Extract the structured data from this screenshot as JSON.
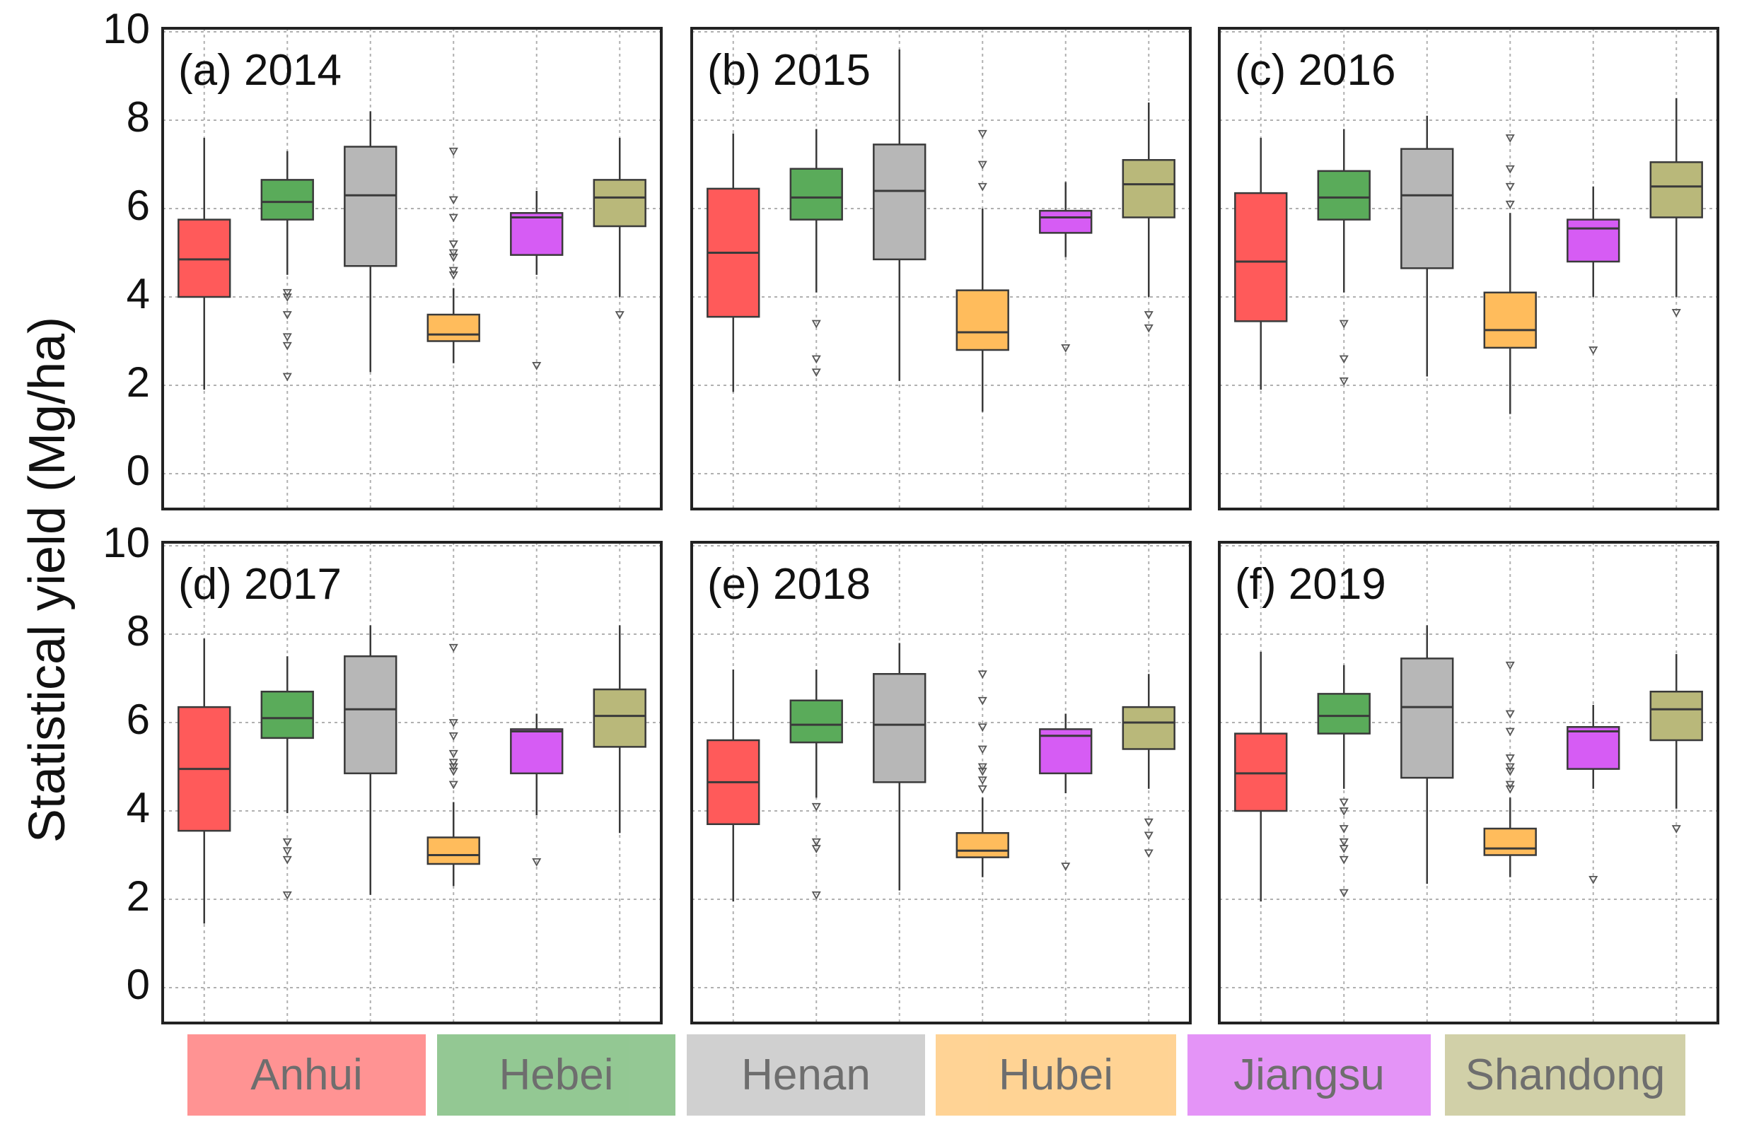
{
  "chart_data": {
    "type": "box",
    "ylabel": "Statistical yield (Mg/ha)",
    "ylim": [
      0,
      10
    ],
    "yticks": [
      0,
      2,
      4,
      6,
      8,
      10
    ],
    "grid": true,
    "layout": "2 rows x 3 columns",
    "categories": [
      "Anhui",
      "Hebei",
      "Henan",
      "Hubei",
      "Jiangsu",
      "Shandong"
    ],
    "colors": {
      "Anhui": "#ff5a5a",
      "Hebei": "#5aab5a",
      "Henan": "#b7b7b7",
      "Hubei": "#ffbc5c",
      "Jiangsu": "#d65cf4",
      "Shandong": "#b9b87a"
    },
    "panels": [
      {
        "title": "(a) 2014",
        "boxes": [
          {
            "name": "Anhui",
            "whislo": 1.9,
            "q1": 4.0,
            "med": 4.85,
            "q3": 5.75,
            "whishi": 7.6,
            "fliers": []
          },
          {
            "name": "Hebei",
            "whislo": 4.5,
            "q1": 5.75,
            "med": 6.15,
            "q3": 6.65,
            "whishi": 7.3,
            "fliers": [
              4.1,
              4.0,
              3.6,
              3.1,
              2.9,
              2.2
            ]
          },
          {
            "name": "Henan",
            "whislo": 2.3,
            "q1": 4.7,
            "med": 6.3,
            "q3": 7.4,
            "whishi": 8.2,
            "fliers": []
          },
          {
            "name": "Hubei",
            "whislo": 2.5,
            "q1": 3.0,
            "med": 3.15,
            "q3": 3.6,
            "whishi": 4.2,
            "fliers": [
              7.3,
              6.2,
              5.8,
              5.2,
              5.0,
              4.9,
              4.6,
              4.5
            ]
          },
          {
            "name": "Jiangsu",
            "whislo": 4.5,
            "q1": 4.95,
            "med": 5.8,
            "q3": 5.9,
            "whishi": 6.4,
            "fliers": [
              2.45
            ]
          },
          {
            "name": "Shandong",
            "whislo": 4.0,
            "q1": 5.6,
            "med": 6.25,
            "q3": 6.65,
            "whishi": 7.6,
            "fliers": [
              3.6
            ]
          }
        ]
      },
      {
        "title": "(b) 2015",
        "boxes": [
          {
            "name": "Anhui",
            "whislo": 1.85,
            "q1": 3.55,
            "med": 5.0,
            "q3": 6.45,
            "whishi": 7.7,
            "fliers": []
          },
          {
            "name": "Hebei",
            "whislo": 4.1,
            "q1": 5.75,
            "med": 6.25,
            "q3": 6.9,
            "whishi": 7.8,
            "fliers": [
              3.4,
              2.6,
              2.3
            ]
          },
          {
            "name": "Henan",
            "whislo": 2.1,
            "q1": 4.85,
            "med": 6.4,
            "q3": 7.45,
            "whishi": 9.6,
            "fliers": []
          },
          {
            "name": "Hubei",
            "whislo": 1.4,
            "q1": 2.8,
            "med": 3.2,
            "q3": 4.15,
            "whishi": 6.0,
            "fliers": [
              7.7,
              7.0,
              6.5
            ]
          },
          {
            "name": "Jiangsu",
            "whislo": 4.9,
            "q1": 5.45,
            "med": 5.8,
            "q3": 5.95,
            "whishi": 6.6,
            "fliers": [
              2.85
            ]
          },
          {
            "name": "Shandong",
            "whislo": 4.0,
            "q1": 5.8,
            "med": 6.55,
            "q3": 7.1,
            "whishi": 8.4,
            "fliers": [
              3.6,
              3.3
            ]
          }
        ]
      },
      {
        "title": "(c) 2016",
        "boxes": [
          {
            "name": "Anhui",
            "whislo": 1.9,
            "q1": 3.45,
            "med": 4.8,
            "q3": 6.35,
            "whishi": 7.6,
            "fliers": []
          },
          {
            "name": "Hebei",
            "whislo": 4.1,
            "q1": 5.75,
            "med": 6.25,
            "q3": 6.85,
            "whishi": 7.8,
            "fliers": [
              3.4,
              2.6,
              2.1
            ]
          },
          {
            "name": "Henan",
            "whislo": 2.2,
            "q1": 4.65,
            "med": 6.3,
            "q3": 7.35,
            "whishi": 8.1,
            "fliers": []
          },
          {
            "name": "Hubei",
            "whislo": 1.35,
            "q1": 2.85,
            "med": 3.25,
            "q3": 4.1,
            "whishi": 5.9,
            "fliers": [
              7.6,
              6.9,
              6.5,
              6.1
            ]
          },
          {
            "name": "Jiangsu",
            "whislo": 4.0,
            "q1": 4.8,
            "med": 5.55,
            "q3": 5.75,
            "whishi": 6.5,
            "fliers": [
              2.8
            ]
          },
          {
            "name": "Shandong",
            "whislo": 4.0,
            "q1": 5.8,
            "med": 6.5,
            "q3": 7.05,
            "whishi": 8.5,
            "fliers": [
              3.65
            ]
          }
        ]
      },
      {
        "title": "(d) 2017",
        "boxes": [
          {
            "name": "Anhui",
            "whislo": 1.45,
            "q1": 3.55,
            "med": 4.95,
            "q3": 6.35,
            "whishi": 7.9,
            "fliers": []
          },
          {
            "name": "Hebei",
            "whislo": 3.95,
            "q1": 5.65,
            "med": 6.1,
            "q3": 6.7,
            "whishi": 7.5,
            "fliers": [
              3.3,
              3.1,
              2.9,
              2.1
            ]
          },
          {
            "name": "Henan",
            "whislo": 2.1,
            "q1": 4.85,
            "med": 6.3,
            "q3": 7.5,
            "whishi": 8.2,
            "fliers": []
          },
          {
            "name": "Hubei",
            "whislo": 2.3,
            "q1": 2.8,
            "med": 3.0,
            "q3": 3.4,
            "whishi": 4.2,
            "fliers": [
              7.7,
              6.0,
              5.7,
              5.3,
              5.1,
              5.0,
              4.9,
              4.6
            ]
          },
          {
            "name": "Jiangsu",
            "whislo": 3.9,
            "q1": 4.85,
            "med": 5.8,
            "q3": 5.85,
            "whishi": 6.2,
            "fliers": [
              2.85
            ]
          },
          {
            "name": "Shandong",
            "whislo": 3.5,
            "q1": 5.45,
            "med": 6.15,
            "q3": 6.75,
            "whishi": 8.2,
            "fliers": []
          }
        ]
      },
      {
        "title": "(e) 2018",
        "boxes": [
          {
            "name": "Anhui",
            "whislo": 1.95,
            "q1": 3.7,
            "med": 4.65,
            "q3": 5.6,
            "whishi": 7.2,
            "fliers": []
          },
          {
            "name": "Hebei",
            "whislo": 4.3,
            "q1": 5.55,
            "med": 5.95,
            "q3": 6.5,
            "whishi": 7.2,
            "fliers": [
              4.1,
              3.3,
              3.15,
              2.1
            ]
          },
          {
            "name": "Henan",
            "whislo": 2.2,
            "q1": 4.65,
            "med": 5.95,
            "q3": 7.1,
            "whishi": 7.8,
            "fliers": []
          },
          {
            "name": "Hubei",
            "whislo": 2.5,
            "q1": 2.95,
            "med": 3.1,
            "q3": 3.5,
            "whishi": 4.3,
            "fliers": [
              7.1,
              6.5,
              5.9,
              5.4,
              5.0,
              4.9,
              4.7,
              4.5
            ]
          },
          {
            "name": "Jiangsu",
            "whislo": 4.4,
            "q1": 4.85,
            "med": 5.7,
            "q3": 5.85,
            "whishi": 6.2,
            "fliers": [
              2.75
            ]
          },
          {
            "name": "Shandong",
            "whislo": 4.5,
            "q1": 5.4,
            "med": 6.0,
            "q3": 6.35,
            "whishi": 7.1,
            "fliers": [
              3.75,
              3.45,
              3.05
            ]
          }
        ]
      },
      {
        "title": "(f) 2019",
        "boxes": [
          {
            "name": "Anhui",
            "whislo": 1.95,
            "q1": 4.0,
            "med": 4.85,
            "q3": 5.75,
            "whishi": 7.6,
            "fliers": []
          },
          {
            "name": "Hebei",
            "whislo": 4.5,
            "q1": 5.75,
            "med": 6.15,
            "q3": 6.65,
            "whishi": 7.3,
            "fliers": [
              4.2,
              4.0,
              3.6,
              3.3,
              3.15,
              2.9,
              2.15
            ]
          },
          {
            "name": "Henan",
            "whislo": 2.35,
            "q1": 4.75,
            "med": 6.35,
            "q3": 7.45,
            "whishi": 8.2,
            "fliers": []
          },
          {
            "name": "Hubei",
            "whislo": 2.5,
            "q1": 3.0,
            "med": 3.15,
            "q3": 3.6,
            "whishi": 4.3,
            "fliers": [
              7.3,
              6.2,
              5.8,
              5.2,
              5.0,
              4.9,
              4.6,
              4.5
            ]
          },
          {
            "name": "Jiangsu",
            "whislo": 4.5,
            "q1": 4.95,
            "med": 5.8,
            "q3": 5.9,
            "whishi": 6.4,
            "fliers": [
              2.45
            ]
          },
          {
            "name": "Shandong",
            "whislo": 4.05,
            "q1": 5.6,
            "med": 6.3,
            "q3": 6.7,
            "whishi": 7.55,
            "fliers": [
              3.6
            ]
          }
        ]
      }
    ]
  }
}
